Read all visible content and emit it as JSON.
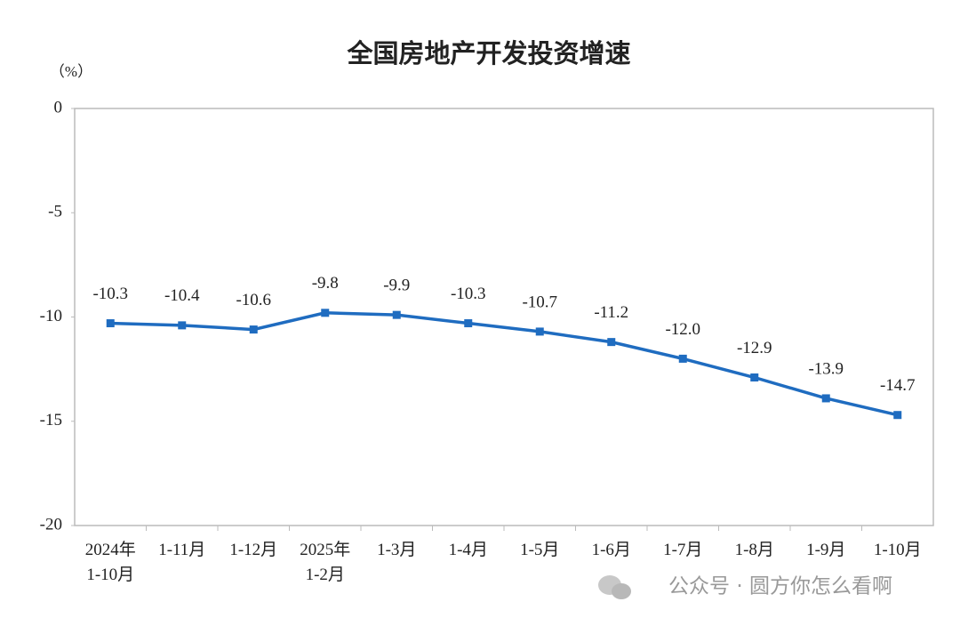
{
  "chart_data": {
    "type": "line",
    "title": "全国房地产开发投资增速",
    "y_unit": "（%）",
    "categories": [
      "2024年\n1-10月",
      "1-11月",
      "1-12月",
      "2025年\n1-2月",
      "1-3月",
      "1-4月",
      "1-5月",
      "1-6月",
      "1-7月",
      "1-8月",
      "1-9月",
      "1-10月"
    ],
    "series": [
      {
        "name": "全国房地产开发投资增速",
        "color": "#1f6cc0",
        "values": [
          -10.3,
          -10.4,
          -10.6,
          -9.8,
          -9.9,
          -10.3,
          -10.7,
          -11.2,
          -12,
          -12.9,
          -13.9,
          -14.7
        ],
        "value_labels": [
          "-10.3",
          "-10.4",
          "-10.6",
          "-9.8",
          "-9.9",
          "-10.3",
          "-10.7",
          "-11.2",
          "-12.0",
          "-12.9",
          "-13.9",
          "-14.7"
        ]
      }
    ],
    "ylim": [
      -20,
      0
    ],
    "yticks": [
      0,
      -5,
      -10,
      -15,
      -20
    ],
    "grid": false,
    "watermark": "公众号 · 圆方你怎么看啊"
  }
}
